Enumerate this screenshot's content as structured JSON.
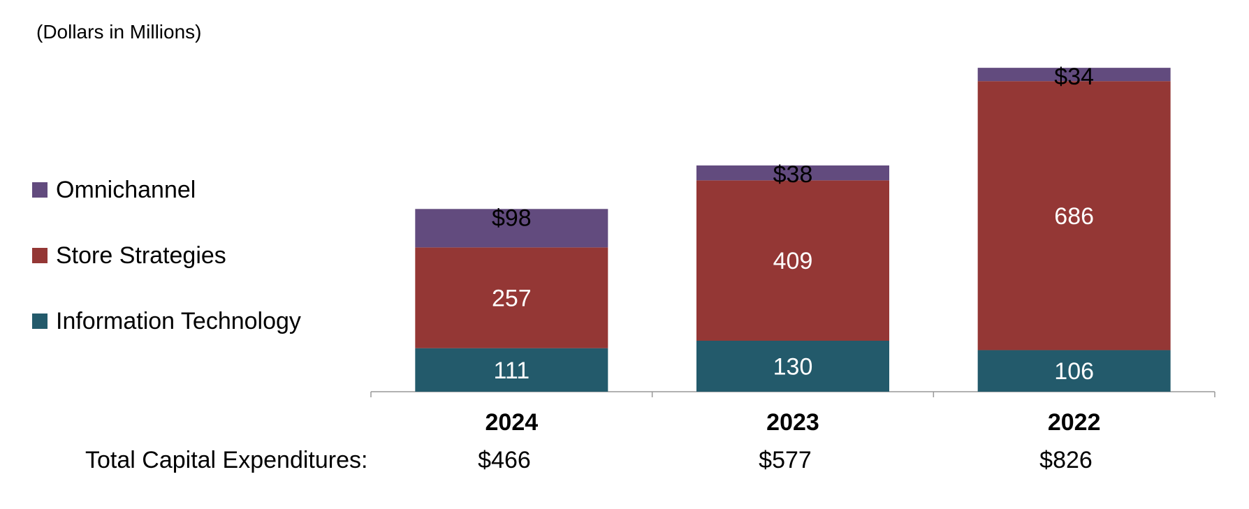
{
  "unit_note": "(Dollars in Millions)",
  "totals_label": "Total Capital Expenditures:",
  "totals": [
    "$466",
    "$577",
    "$826"
  ],
  "colors": {
    "information_technology": "#235a6b",
    "store_strategies": "#943735",
    "omnichannel": "#624b7e",
    "axis": "#999999"
  },
  "chart_data": {
    "type": "bar",
    "stacked": true,
    "categories": [
      "2024",
      "2023",
      "2022"
    ],
    "series": [
      {
        "name": "Information Technology",
        "key": "information_technology",
        "values": [
          111,
          130,
          106
        ],
        "labels": [
          "111",
          "130",
          "106"
        ],
        "label_color": "#ffffff"
      },
      {
        "name": "Store Strategies",
        "key": "store_strategies",
        "values": [
          257,
          409,
          686
        ],
        "labels": [
          "257",
          "409",
          "686"
        ],
        "label_color": "#ffffff"
      },
      {
        "name": "Omnichannel",
        "key": "omnichannel",
        "values": [
          98,
          38,
          34
        ],
        "labels": [
          "$98",
          "$38",
          "$34"
        ],
        "label_color": "#000000"
      }
    ],
    "legend_order": [
      "Omnichannel",
      "Store Strategies",
      "Information Technology"
    ],
    "legend_position": "left",
    "ylim": [
      0,
      850
    ],
    "grid": false,
    "xlabel": "",
    "ylabel": ""
  }
}
